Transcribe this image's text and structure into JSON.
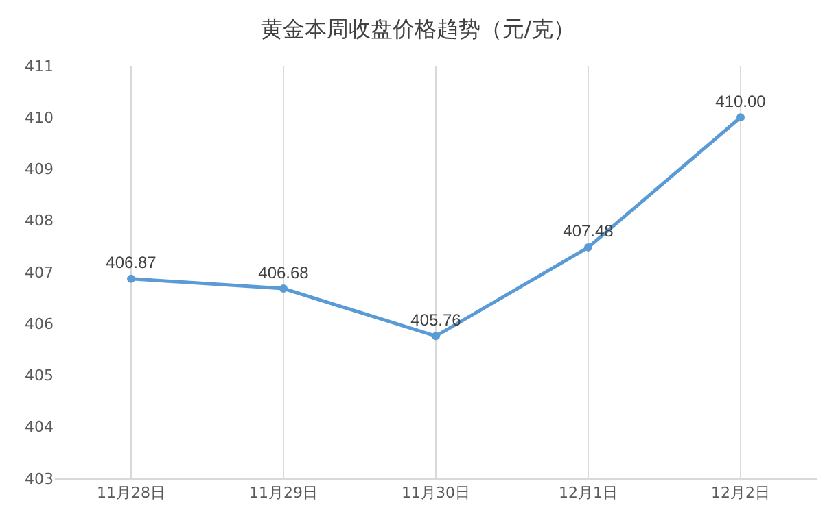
{
  "chart_data": {
    "type": "line",
    "title": "黄金本周收盘价格趋势（元/克）",
    "categories": [
      "11月28日",
      "11月29日",
      "11月30日",
      "12月1日",
      "12月2日"
    ],
    "series": [
      {
        "color": "#5b9bd5",
        "values": [
          406.87,
          406.68,
          405.76,
          407.48,
          410.0
        ],
        "value_labels": [
          "406.87",
          "406.68",
          "405.76",
          "407.48",
          "410.00"
        ]
      }
    ],
    "ylim": [
      403,
      411
    ],
    "yticks": [
      403,
      404,
      405,
      406,
      407,
      408,
      409,
      410,
      411
    ],
    "grid": "x",
    "legend": false,
    "marker": "circle",
    "line_style": "solid"
  }
}
